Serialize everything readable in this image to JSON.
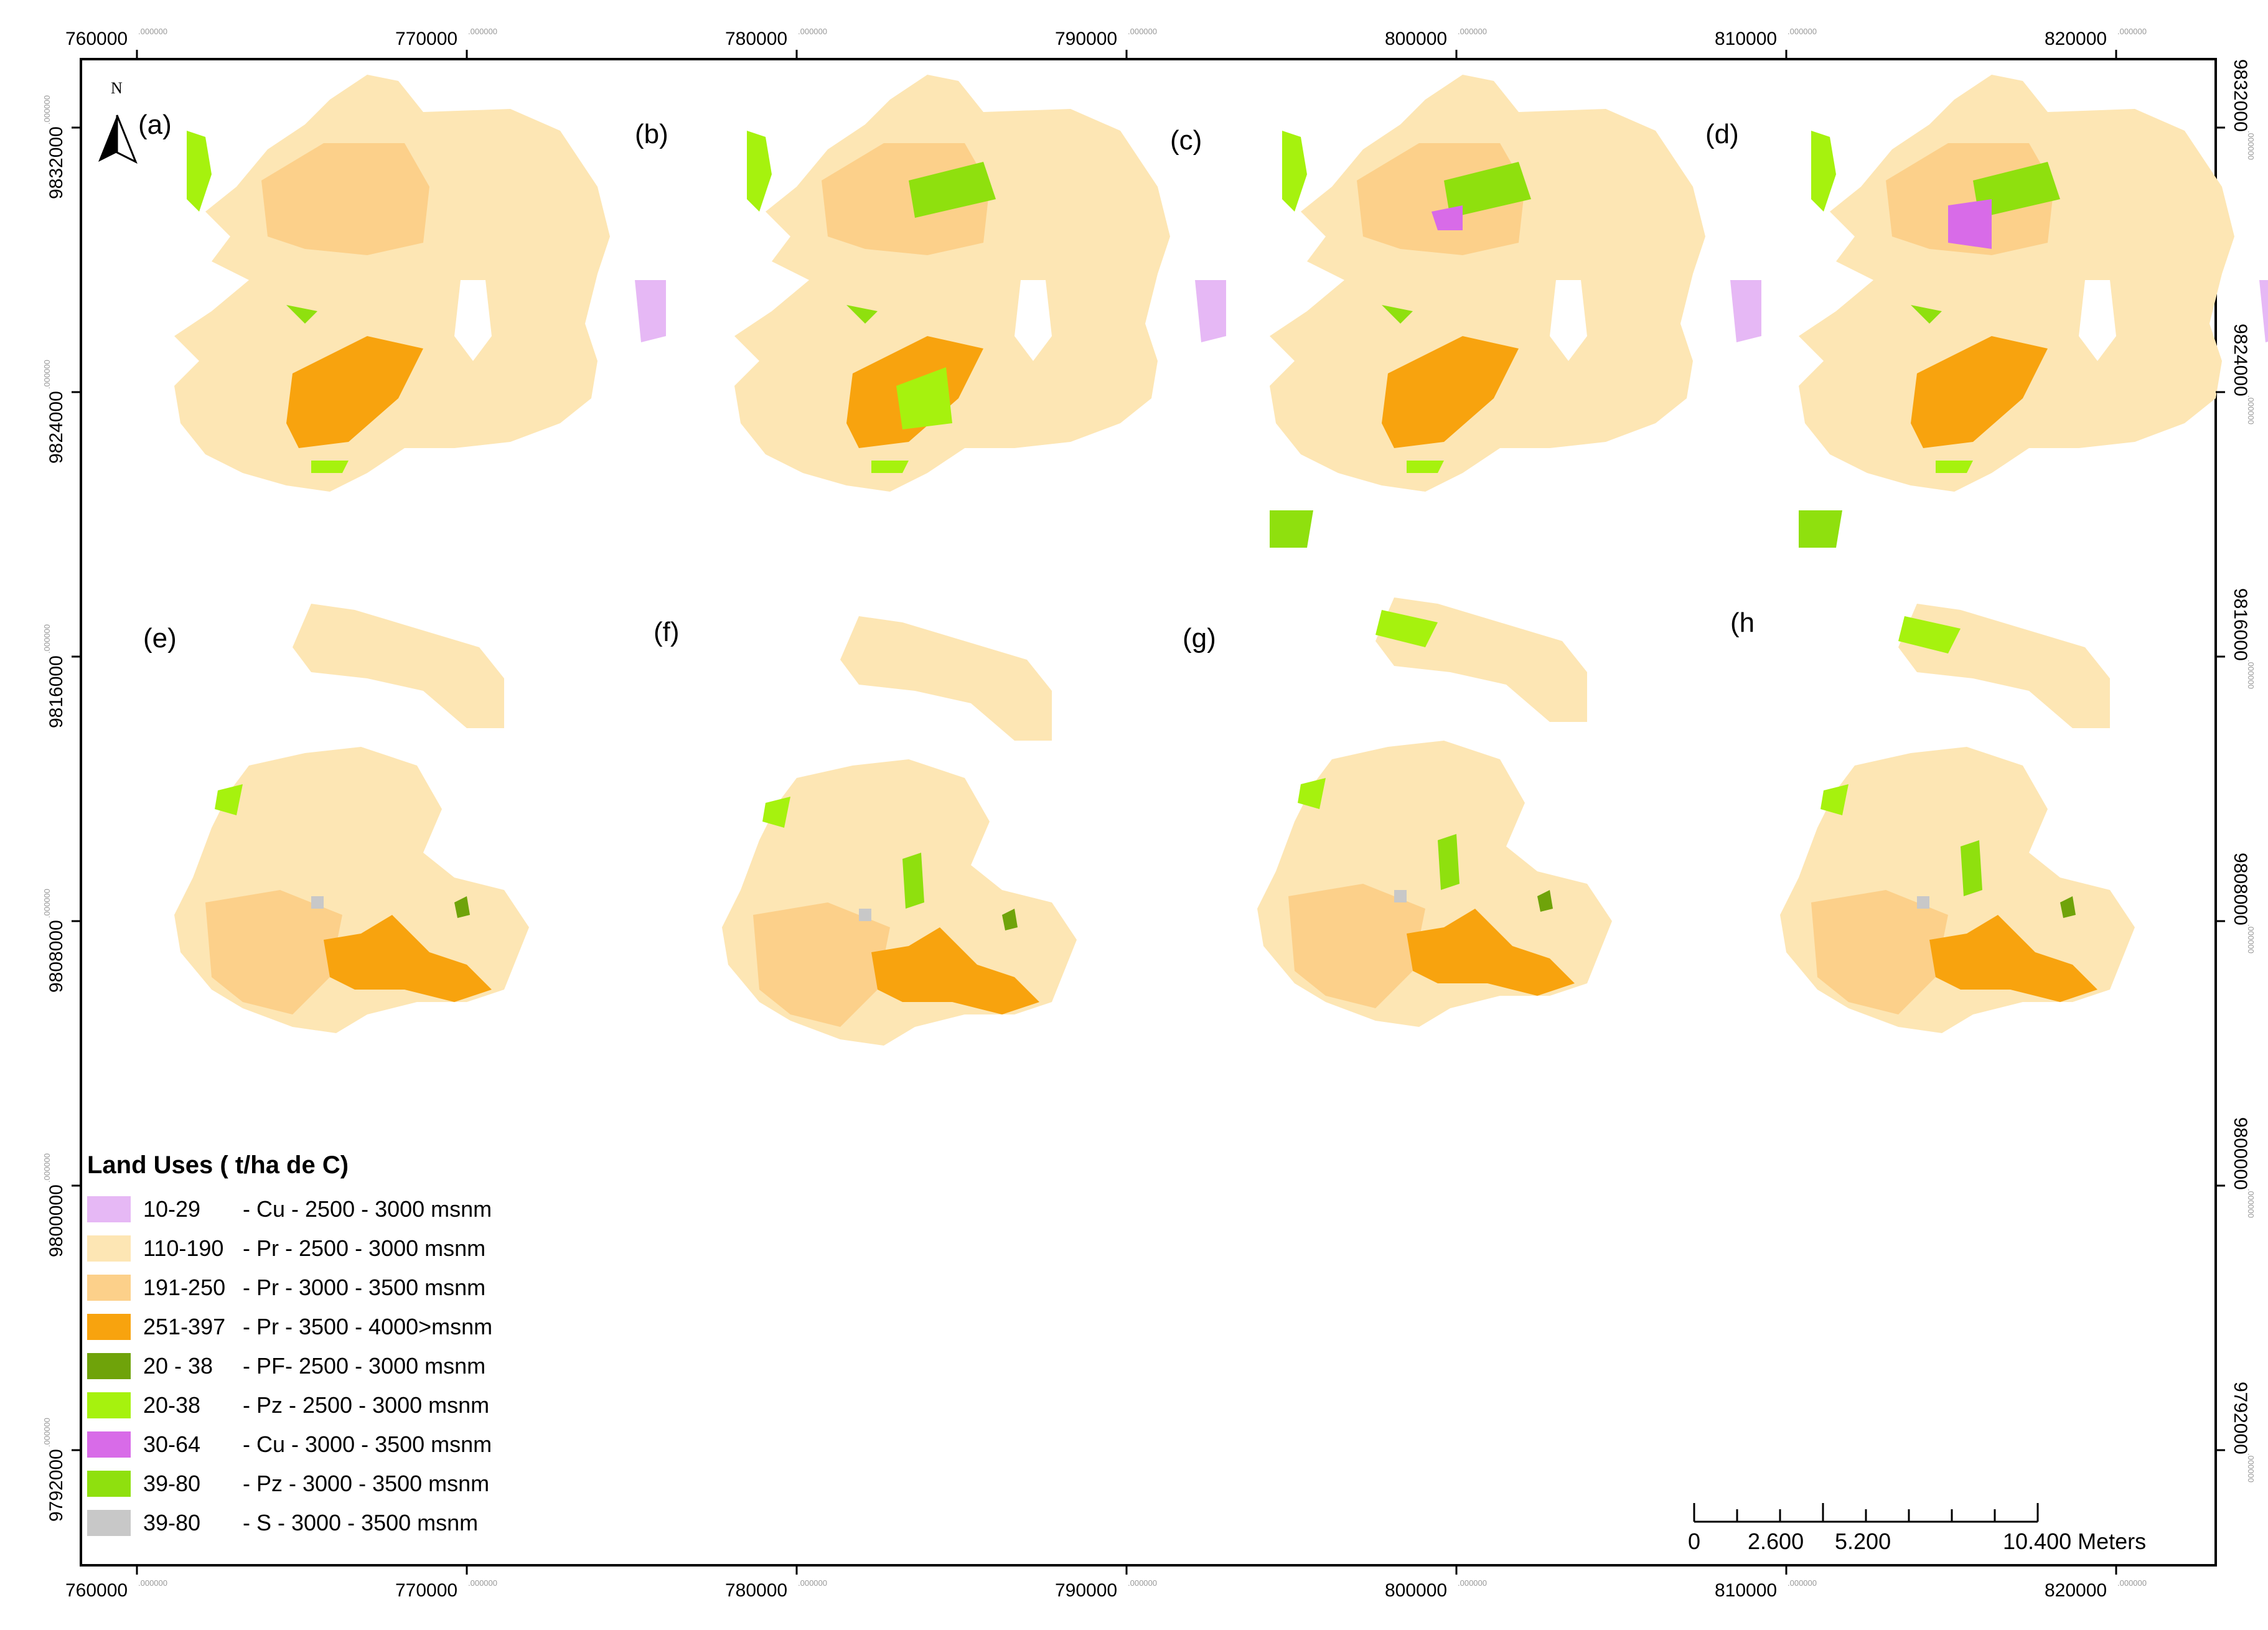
{
  "map": {
    "north_arrow_label": "N",
    "panels": [
      "(a)",
      "(b)",
      "(c)",
      "(d)",
      "(e)",
      "(f)",
      "(g)",
      "(h"
    ],
    "x_ticks": [
      "760000",
      "770000",
      "780000",
      "790000",
      "800000",
      "810000",
      "820000"
    ],
    "x_tick_decimal": ".000000",
    "y_ticks": [
      "9832000",
      "9824000",
      "9816000",
      "9808000",
      "9800000",
      "9792000"
    ],
    "y_tick_decimal": ".000000"
  },
  "legend": {
    "title": "Land Uses ( t/ha de C)",
    "items": [
      {
        "range": "10-29",
        "desc": "- Cu - 2500 - 3000 msnm",
        "color": "#e6b8f5"
      },
      {
        "range": "110-190",
        "desc": "- Pr  - 2500 - 3000 msnm",
        "color": "#fde6b4"
      },
      {
        "range": "191-250",
        "desc": "- Pr  - 3000 - 3500 msnm",
        "color": "#fcd08a"
      },
      {
        "range": "251-397",
        "desc": "- Pr  - 3500 - 4000>msnm",
        "color": "#f8a30e"
      },
      {
        "range": "20 - 38",
        "desc": " - PF- 2500 - 3000 msnm",
        "color": "#6fa30a"
      },
      {
        "range": "20-38",
        "desc": " - Pz - 2500 - 3000 msnm",
        "color": "#a6f20e"
      },
      {
        "range": "30-64",
        "desc": "- Cu - 3000 - 3500 msnm",
        "color": "#d86be8"
      },
      {
        "range": "39-80",
        "desc": "- Pz - 3000 - 3500 msnm",
        "color": "#8fe00e"
      },
      {
        "range": "39-80",
        "desc": "- S   - 3000 - 3500 msnm",
        "color": "#c8c8c8"
      }
    ]
  },
  "scalebar": {
    "labels": [
      "0",
      "2.600",
      "5.200",
      "10.400 Meters"
    ]
  }
}
